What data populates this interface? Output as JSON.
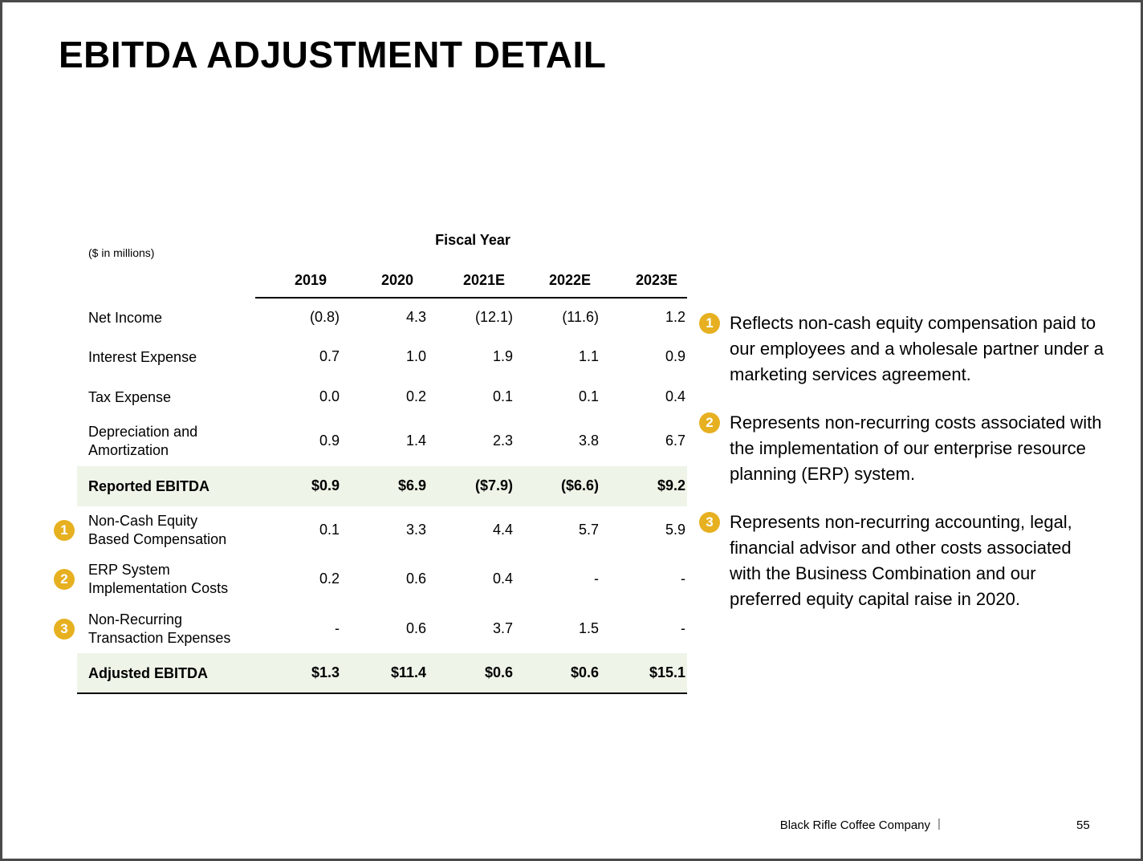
{
  "header": {
    "title": "EBITDA ADJUSTMENT DETAIL"
  },
  "table": {
    "units": "($ in millions)",
    "group_header": "Fiscal Year",
    "columns": [
      "2019",
      "2020",
      "2021E",
      "2022E",
      "2023E"
    ],
    "rows": [
      {
        "label": [
          "Net Income"
        ],
        "values": [
          "(0.8)",
          "4.3",
          "(12.1)",
          "(11.6)",
          "1.2"
        ]
      },
      {
        "label": [
          "Interest Expense"
        ],
        "values": [
          "0.7",
          "1.0",
          "1.9",
          "1.1",
          "0.9"
        ]
      },
      {
        "label": [
          "Tax Expense"
        ],
        "values": [
          "0.0",
          "0.2",
          "0.1",
          "0.1",
          "0.4"
        ]
      },
      {
        "label": [
          "Depreciation and",
          "Amortization"
        ],
        "values": [
          "0.9",
          "1.4",
          "2.3",
          "3.8",
          "6.7"
        ]
      },
      {
        "label": [
          "Reported EBITDA"
        ],
        "values": [
          "$0.9",
          "$6.9",
          "($7.9)",
          "($6.6)",
          "$9.2"
        ],
        "highlight": true
      },
      {
        "label": [
          "Non-Cash Equity",
          "Based Compensation"
        ],
        "badge": "1",
        "values": [
          "0.1",
          "3.3",
          "4.4",
          "5.7",
          "5.9"
        ]
      },
      {
        "label": [
          "ERP System",
          "Implementation Costs"
        ],
        "badge": "2",
        "values": [
          "0.2",
          "0.6",
          "0.4",
          "-",
          "-"
        ]
      },
      {
        "label": [
          "Non-Recurring",
          "Transaction Expenses"
        ],
        "badge": "3",
        "values": [
          "-",
          "0.6",
          "3.7",
          "1.5",
          "-"
        ]
      },
      {
        "label": [
          "Adjusted EBITDA"
        ],
        "values": [
          "$1.3",
          "$11.4",
          "$0.6",
          "$0.6",
          "$15.1"
        ],
        "highlight": true
      }
    ]
  },
  "notes": [
    {
      "badge": "1",
      "text": "Reflects non-cash equity compensation paid to our employees and a wholesale partner under a marketing services agreement."
    },
    {
      "badge": "2",
      "text": "Represents non-recurring costs associated with the implementation of our enterprise resource planning (ERP) system."
    },
    {
      "badge": "3",
      "text": "Represents non-recurring accounting, legal, financial advisor and other costs associated with the Business Combination and our preferred equity capital raise in 2020."
    }
  ],
  "footer": {
    "company": "Black Rifle Coffee Company",
    "page": "55"
  }
}
